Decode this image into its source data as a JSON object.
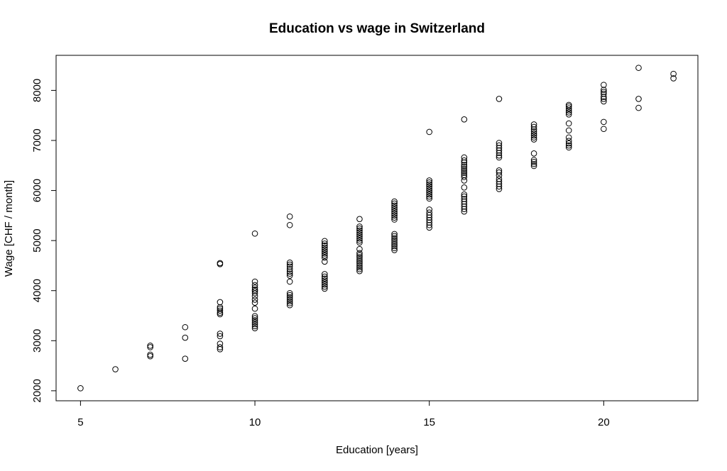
{
  "chart_data": {
    "type": "scatter",
    "title": "Education vs wage in Switzerland",
    "xlabel": "Education [years]",
    "ylabel": "Wage [CHF / month]",
    "xlim": [
      4.3,
      22.7
    ],
    "ylim": [
      1800,
      8700
    ],
    "xticks": [
      5,
      10,
      15,
      20
    ],
    "yticks": [
      2000,
      3000,
      4000,
      5000,
      6000,
      7000,
      8000
    ],
    "grid": false,
    "legend": "none",
    "marker": "open-circle",
    "colors": {
      "points": "#000000",
      "axes": "#000000",
      "background": "#ffffff"
    },
    "points": [
      [
        5,
        2050
      ],
      [
        6,
        2430
      ],
      [
        7,
        2690
      ],
      [
        7,
        2720
      ],
      [
        7,
        2870
      ],
      [
        7,
        2900
      ],
      [
        8,
        2640
      ],
      [
        8,
        3060
      ],
      [
        8,
        3270
      ],
      [
        9,
        2830
      ],
      [
        9,
        2870
      ],
      [
        9,
        2940
      ],
      [
        9,
        3090
      ],
      [
        9,
        3140
      ],
      [
        9,
        3530
      ],
      [
        9,
        3560
      ],
      [
        9,
        3600
      ],
      [
        9,
        3640
      ],
      [
        9,
        3670
      ],
      [
        9,
        3770
      ],
      [
        9,
        4530
      ],
      [
        9,
        4550
      ],
      [
        10,
        3250
      ],
      [
        10,
        3290
      ],
      [
        10,
        3330
      ],
      [
        10,
        3370
      ],
      [
        10,
        3410
      ],
      [
        10,
        3450
      ],
      [
        10,
        3490
      ],
      [
        10,
        3640
      ],
      [
        10,
        3760
      ],
      [
        10,
        3820
      ],
      [
        10,
        3890
      ],
      [
        10,
        3950
      ],
      [
        10,
        3990
      ],
      [
        10,
        4020
      ],
      [
        10,
        4060
      ],
      [
        10,
        4110
      ],
      [
        10,
        4180
      ],
      [
        10,
        5140
      ],
      [
        11,
        3710
      ],
      [
        11,
        3750
      ],
      [
        11,
        3790
      ],
      [
        11,
        3830
      ],
      [
        11,
        3870
      ],
      [
        11,
        3910
      ],
      [
        11,
        3950
      ],
      [
        11,
        4180
      ],
      [
        11,
        4300
      ],
      [
        11,
        4340
      ],
      [
        11,
        4380
      ],
      [
        11,
        4430
      ],
      [
        11,
        4480
      ],
      [
        11,
        4520
      ],
      [
        11,
        4560
      ],
      [
        11,
        5310
      ],
      [
        11,
        5480
      ],
      [
        12,
        4040
      ],
      [
        12,
        4080
      ],
      [
        12,
        4120
      ],
      [
        12,
        4160
      ],
      [
        12,
        4200
      ],
      [
        12,
        4240
      ],
      [
        12,
        4280
      ],
      [
        12,
        4330
      ],
      [
        12,
        4580
      ],
      [
        12,
        4660
      ],
      [
        12,
        4700
      ],
      [
        12,
        4740
      ],
      [
        12,
        4780
      ],
      [
        12,
        4820
      ],
      [
        12,
        4860
      ],
      [
        12,
        4900
      ],
      [
        12,
        4940
      ],
      [
        12,
        4990
      ],
      [
        13,
        4390
      ],
      [
        13,
        4430
      ],
      [
        13,
        4470
      ],
      [
        13,
        4510
      ],
      [
        13,
        4550
      ],
      [
        13,
        4590
      ],
      [
        13,
        4630
      ],
      [
        13,
        4670
      ],
      [
        13,
        4710
      ],
      [
        13,
        4750
      ],
      [
        13,
        4830
      ],
      [
        13,
        4960
      ],
      [
        13,
        5000
      ],
      [
        13,
        5040
      ],
      [
        13,
        5080
      ],
      [
        13,
        5120
      ],
      [
        13,
        5160
      ],
      [
        13,
        5200
      ],
      [
        13,
        5240
      ],
      [
        13,
        5280
      ],
      [
        13,
        5430
      ],
      [
        14,
        4810
      ],
      [
        14,
        4850
      ],
      [
        14,
        4890
      ],
      [
        14,
        4930
      ],
      [
        14,
        4970
      ],
      [
        14,
        5010
      ],
      [
        14,
        5050
      ],
      [
        14,
        5090
      ],
      [
        14,
        5130
      ],
      [
        14,
        5420
      ],
      [
        14,
        5460
      ],
      [
        14,
        5500
      ],
      [
        14,
        5540
      ],
      [
        14,
        5580
      ],
      [
        14,
        5620
      ],
      [
        14,
        5660
      ],
      [
        14,
        5700
      ],
      [
        14,
        5740
      ],
      [
        14,
        5780
      ],
      [
        15,
        5260
      ],
      [
        15,
        5310
      ],
      [
        15,
        5360
      ],
      [
        15,
        5410
      ],
      [
        15,
        5460
      ],
      [
        15,
        5510
      ],
      [
        15,
        5560
      ],
      [
        15,
        5620
      ],
      [
        15,
        5840
      ],
      [
        15,
        5880
      ],
      [
        15,
        5920
      ],
      [
        15,
        5960
      ],
      [
        15,
        6000
      ],
      [
        15,
        6040
      ],
      [
        15,
        6080
      ],
      [
        15,
        6120
      ],
      [
        15,
        6160
      ],
      [
        15,
        6200
      ],
      [
        15,
        7170
      ],
      [
        16,
        5580
      ],
      [
        16,
        5630
      ],
      [
        16,
        5680
      ],
      [
        16,
        5730
      ],
      [
        16,
        5780
      ],
      [
        16,
        5830
      ],
      [
        16,
        5880
      ],
      [
        16,
        5920
      ],
      [
        16,
        6060
      ],
      [
        16,
        6200
      ],
      [
        16,
        6270
      ],
      [
        16,
        6310
      ],
      [
        16,
        6350
      ],
      [
        16,
        6390
      ],
      [
        16,
        6430
      ],
      [
        16,
        6470
      ],
      [
        16,
        6510
      ],
      [
        16,
        6560
      ],
      [
        16,
        6600
      ],
      [
        16,
        6660
      ],
      [
        16,
        7420
      ],
      [
        17,
        6030
      ],
      [
        17,
        6080
      ],
      [
        17,
        6130
      ],
      [
        17,
        6180
      ],
      [
        17,
        6230
      ],
      [
        17,
        6300
      ],
      [
        17,
        6360
      ],
      [
        17,
        6400
      ],
      [
        17,
        6660
      ],
      [
        17,
        6700
      ],
      [
        17,
        6750
      ],
      [
        17,
        6800
      ],
      [
        17,
        6850
      ],
      [
        17,
        6900
      ],
      [
        17,
        6950
      ],
      [
        17,
        7830
      ],
      [
        18,
        6490
      ],
      [
        18,
        6530
      ],
      [
        18,
        6570
      ],
      [
        18,
        6610
      ],
      [
        18,
        6740
      ],
      [
        18,
        7020
      ],
      [
        18,
        7060
      ],
      [
        18,
        7100
      ],
      [
        18,
        7140
      ],
      [
        18,
        7180
      ],
      [
        18,
        7220
      ],
      [
        18,
        7270
      ],
      [
        18,
        7320
      ],
      [
        19,
        6860
      ],
      [
        19,
        6900
      ],
      [
        19,
        6940
      ],
      [
        19,
        6990
      ],
      [
        19,
        7060
      ],
      [
        19,
        7200
      ],
      [
        19,
        7340
      ],
      [
        19,
        7520
      ],
      [
        19,
        7560
      ],
      [
        19,
        7600
      ],
      [
        19,
        7640
      ],
      [
        19,
        7680
      ],
      [
        19,
        7710
      ],
      [
        20,
        7230
      ],
      [
        20,
        7370
      ],
      [
        20,
        7780
      ],
      [
        20,
        7830
      ],
      [
        20,
        7870
      ],
      [
        20,
        7930
      ],
      [
        20,
        7970
      ],
      [
        20,
        8010
      ],
      [
        20,
        8110
      ],
      [
        21,
        7650
      ],
      [
        21,
        7830
      ],
      [
        21,
        8450
      ],
      [
        22,
        8240
      ],
      [
        22,
        8330
      ]
    ]
  }
}
